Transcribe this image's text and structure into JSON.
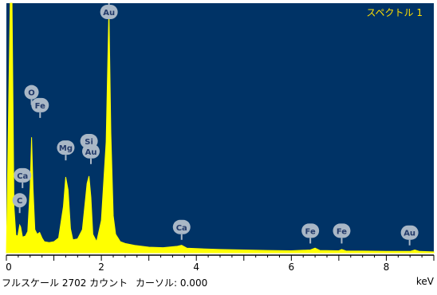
{
  "colors": {
    "plot_background": "#003366",
    "spectrum": "#ffff00",
    "title": "#ffe000",
    "marker_fill": "#a9b7c6",
    "marker_text": "#233a6a"
  },
  "status_bar": {
    "fullscale_label": "フルスケール 2702 カウント",
    "cursor_label": "カーソル: 0.000",
    "unit_label": "keV"
  },
  "chart_data": {
    "type": "area",
    "title": "スペクトル 1",
    "xlabel": "keV",
    "ylabel": "",
    "xlim": [
      0,
      9
    ],
    "ylim": [
      0,
      2702
    ],
    "grid": false,
    "x_ticks": [
      0,
      2,
      4,
      6,
      8
    ],
    "x_tick_labels": [
      "0",
      "2",
      "4",
      "6",
      "8"
    ],
    "full_scale_counts": 2702,
    "cursor_keV": 0.0,
    "series": [
      {
        "type": "area",
        "color": "#ffff00",
        "x": [
          0.0,
          0.08,
          0.12,
          0.16,
          0.2,
          0.24,
          0.28,
          0.3,
          0.34,
          0.4,
          0.45,
          0.5,
          0.53,
          0.56,
          0.6,
          0.65,
          0.7,
          0.75,
          0.8,
          0.9,
          1.0,
          1.1,
          1.2,
          1.25,
          1.3,
          1.35,
          1.4,
          1.5,
          1.6,
          1.7,
          1.74,
          1.78,
          1.82,
          1.9,
          2.0,
          2.1,
          2.16,
          2.2,
          2.25,
          2.3,
          2.4,
          2.5,
          2.7,
          3.0,
          3.3,
          3.6,
          3.69,
          3.8,
          4.0,
          4.5,
          5.0,
          5.5,
          6.0,
          6.4,
          6.5,
          6.6,
          7.0,
          7.06,
          7.15,
          7.5,
          8.0,
          8.5,
          8.6,
          8.7,
          9.0
        ],
        "y": [
          0,
          2702,
          2702,
          500,
          190,
          180,
          300,
          280,
          170,
          180,
          230,
          700,
          1250,
          700,
          250,
          200,
          220,
          160,
          120,
          110,
          120,
          160,
          500,
          820,
          680,
          260,
          140,
          150,
          250,
          750,
          830,
          600,
          200,
          120,
          350,
          1200,
          2650,
          1300,
          400,
          200,
          120,
          100,
          80,
          60,
          55,
          70,
          80,
          50,
          45,
          35,
          30,
          25,
          22,
          30,
          50,
          25,
          22,
          35,
          20,
          18,
          15,
          15,
          30,
          15,
          10
        ]
      }
    ],
    "annotations": [
      {
        "label": "Au",
        "x": 2.16,
        "y": 2702
      },
      {
        "label": "O",
        "x": 0.53,
        "y": 1600
      },
      {
        "label": "Fe",
        "x": 0.71,
        "y": 1460
      },
      {
        "label": "Mg",
        "x": 1.25,
        "y": 1000
      },
      {
        "label": "Si",
        "x": 1.74,
        "y": 1070
      },
      {
        "label": "Au",
        "x": 1.78,
        "y": 960
      },
      {
        "label": "Ca",
        "x": 0.34,
        "y": 700
      },
      {
        "label": "C",
        "x": 0.28,
        "y": 430
      },
      {
        "label": "Ca",
        "x": 3.69,
        "y": 140
      },
      {
        "label": "Fe",
        "x": 6.4,
        "y": 100
      },
      {
        "label": "Fe",
        "x": 7.06,
        "y": 100
      },
      {
        "label": "Au",
        "x": 8.49,
        "y": 80
      }
    ]
  }
}
